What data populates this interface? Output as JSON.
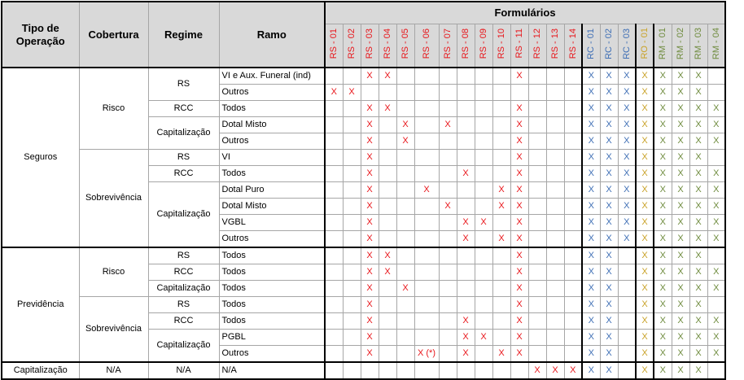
{
  "headers": {
    "tipo": "Tipo de Operação",
    "cobertura": "Cobertura",
    "regime": "Regime",
    "ramo": "Ramo",
    "formularios": "Formulários"
  },
  "forms": [
    {
      "code": "RS - 01",
      "group": "RS"
    },
    {
      "code": "RS - 02",
      "group": "RS"
    },
    {
      "code": "RS - 03",
      "group": "RS"
    },
    {
      "code": "RS - 04",
      "group": "RS"
    },
    {
      "code": "RS - 05",
      "group": "RS"
    },
    {
      "code": "RS - 06",
      "group": "RS"
    },
    {
      "code": "RS - 07",
      "group": "RS"
    },
    {
      "code": "RS - 08",
      "group": "RS"
    },
    {
      "code": "RS - 09",
      "group": "RS"
    },
    {
      "code": "RS - 10",
      "group": "RS"
    },
    {
      "code": "RS - 11",
      "group": "RS"
    },
    {
      "code": "RS - 12",
      "group": "RS"
    },
    {
      "code": "RS - 13",
      "group": "RS"
    },
    {
      "code": "RS - 14",
      "group": "RS"
    },
    {
      "code": "RC - 01",
      "group": "RC"
    },
    {
      "code": "RC - 02",
      "group": "RC"
    },
    {
      "code": "RC - 03",
      "group": "RC"
    },
    {
      "code": "RO - 01",
      "group": "RO"
    },
    {
      "code": "RM - 01",
      "group": "RM"
    },
    {
      "code": "RM - 02",
      "group": "RM"
    },
    {
      "code": "RM - 03",
      "group": "RM"
    },
    {
      "code": "RM - 04",
      "group": "RM"
    }
  ],
  "group_colors": {
    "RS": "#e8161b",
    "RC": "#3f6fb5",
    "RO": "#c9a227",
    "RM": "#6e8b3d"
  },
  "operations": [
    {
      "label": "Seguros",
      "coverages": [
        {
          "label": "Risco",
          "regimes": [
            {
              "label": "RS",
              "ramos": [
                {
                  "label": "VI e Aux. Funeral (ind)",
                  "marks": {
                    "RS - 03": "X",
                    "RS - 04": "X",
                    "RS - 11": "X",
                    "RC - 01": "X",
                    "RC - 02": "X",
                    "RC - 03": "X",
                    "RO - 01": "X",
                    "RM - 01": "X",
                    "RM - 02": "X",
                    "RM - 03": "X"
                  }
                },
                {
                  "label": "Outros",
                  "marks": {
                    "RS - 01": "X",
                    "RS - 02": "X",
                    "RC - 01": "X",
                    "RC - 02": "X",
                    "RC - 03": "X",
                    "RO - 01": "X",
                    "RM - 01": "X",
                    "RM - 02": "X",
                    "RM - 03": "X"
                  }
                }
              ]
            },
            {
              "label": "RCC",
              "ramos": [
                {
                  "label": "Todos",
                  "marks": {
                    "RS - 03": "X",
                    "RS - 04": "X",
                    "RS - 11": "X",
                    "RC - 01": "X",
                    "RC - 02": "X",
                    "RC - 03": "X",
                    "RO - 01": "X",
                    "RM - 01": "X",
                    "RM - 02": "X",
                    "RM - 03": "X",
                    "RM - 04": "X"
                  }
                }
              ]
            },
            {
              "label": "Capitalização",
              "ramos": [
                {
                  "label": "Dotal Misto",
                  "marks": {
                    "RS - 03": "X",
                    "RS - 05": "X",
                    "RS - 07": "X",
                    "RS - 11": "X",
                    "RC - 01": "X",
                    "RC - 02": "X",
                    "RC - 03": "X",
                    "RO - 01": "X",
                    "RM - 01": "X",
                    "RM - 02": "X",
                    "RM - 03": "X",
                    "RM - 04": "X"
                  }
                },
                {
                  "label": "Outros",
                  "marks": {
                    "RS - 03": "X",
                    "RS - 05": "X",
                    "RS - 11": "X",
                    "RC - 01": "X",
                    "RC - 02": "X",
                    "RC - 03": "X",
                    "RO - 01": "X",
                    "RM - 01": "X",
                    "RM - 02": "X",
                    "RM - 03": "X",
                    "RM - 04": "X"
                  }
                }
              ]
            }
          ]
        },
        {
          "label": "Sobrevivência",
          "regimes": [
            {
              "label": "RS",
              "ramos": [
                {
                  "label": "VI",
                  "marks": {
                    "RS - 03": "X",
                    "RS - 11": "X",
                    "RC - 01": "X",
                    "RC - 02": "X",
                    "RC - 03": "X",
                    "RO - 01": "X",
                    "RM - 01": "X",
                    "RM - 02": "X",
                    "RM - 03": "X"
                  }
                }
              ]
            },
            {
              "label": "RCC",
              "ramos": [
                {
                  "label": "Todos",
                  "marks": {
                    "RS - 03": "X",
                    "RS - 08": "X",
                    "RS - 11": "X",
                    "RC - 01": "X",
                    "RC - 02": "X",
                    "RC - 03": "X",
                    "RO - 01": "X",
                    "RM - 01": "X",
                    "RM - 02": "X",
                    "RM - 03": "X",
                    "RM - 04": "X"
                  }
                }
              ]
            },
            {
              "label": "Capitalização",
              "ramos": [
                {
                  "label": "Dotal Puro",
                  "marks": {
                    "RS - 03": "X",
                    "RS - 06": "X",
                    "RS - 10": "X",
                    "RS - 11": "X",
                    "RC - 01": "X",
                    "RC - 02": "X",
                    "RC - 03": "X",
                    "RO - 01": "X",
                    "RM - 01": "X",
                    "RM - 02": "X",
                    "RM - 03": "X",
                    "RM - 04": "X"
                  }
                },
                {
                  "label": "Dotal Misto",
                  "marks": {
                    "RS - 03": "X",
                    "RS - 07": "X",
                    "RS - 10": "X",
                    "RS - 11": "X",
                    "RC - 01": "X",
                    "RC - 02": "X",
                    "RC - 03": "X",
                    "RO - 01": "X",
                    "RM - 01": "X",
                    "RM - 02": "X",
                    "RM - 03": "X",
                    "RM - 04": "X"
                  }
                },
                {
                  "label": "VGBL",
                  "marks": {
                    "RS - 03": "X",
                    "RS - 08": "X",
                    "RS - 09": "X",
                    "RS - 11": "X",
                    "RC - 01": "X",
                    "RC - 02": "X",
                    "RC - 03": "X",
                    "RO - 01": "X",
                    "RM - 01": "X",
                    "RM - 02": "X",
                    "RM - 03": "X",
                    "RM - 04": "X"
                  }
                },
                {
                  "label": "Outros",
                  "marks": {
                    "RS - 03": "X",
                    "RS - 08": "X",
                    "RS - 10": "X",
                    "RS - 11": "X",
                    "RC - 01": "X",
                    "RC - 02": "X",
                    "RC - 03": "X",
                    "RO - 01": "X",
                    "RM - 01": "X",
                    "RM - 02": "X",
                    "RM - 03": "X",
                    "RM - 04": "X"
                  }
                }
              ]
            }
          ]
        }
      ]
    },
    {
      "label": "Previdência",
      "coverages": [
        {
          "label": "Risco",
          "regimes": [
            {
              "label": "RS",
              "ramos": [
                {
                  "label": "Todos",
                  "marks": {
                    "RS - 03": "X",
                    "RS - 04": "X",
                    "RS - 11": "X",
                    "RC - 01": "X",
                    "RC - 02": "X",
                    "RO - 01": "X",
                    "RM - 01": "X",
                    "RM - 02": "X",
                    "RM - 03": "X"
                  }
                }
              ]
            },
            {
              "label": "RCC",
              "ramos": [
                {
                  "label": "Todos",
                  "marks": {
                    "RS - 03": "X",
                    "RS - 04": "X",
                    "RS - 11": "X",
                    "RC - 01": "X",
                    "RC - 02": "X",
                    "RO - 01": "X",
                    "RM - 01": "X",
                    "RM - 02": "X",
                    "RM - 03": "X",
                    "RM - 04": "X"
                  }
                }
              ]
            },
            {
              "label": "Capitalização",
              "ramos": [
                {
                  "label": "Todos",
                  "marks": {
                    "RS - 03": "X",
                    "RS - 05": "X",
                    "RS - 11": "X",
                    "RC - 01": "X",
                    "RC - 02": "X",
                    "RO - 01": "X",
                    "RM - 01": "X",
                    "RM - 02": "X",
                    "RM - 03": "X",
                    "RM - 04": "X"
                  }
                }
              ]
            }
          ]
        },
        {
          "label": "Sobrevivência",
          "regimes": [
            {
              "label": "RS",
              "ramos": [
                {
                  "label": "Todos",
                  "marks": {
                    "RS - 03": "X",
                    "RS - 11": "X",
                    "RC - 01": "X",
                    "RC - 02": "X",
                    "RO - 01": "X",
                    "RM - 01": "X",
                    "RM - 02": "X",
                    "RM - 03": "X"
                  }
                }
              ]
            },
            {
              "label": "RCC",
              "ramos": [
                {
                  "label": "Todos",
                  "marks": {
                    "RS - 03": "X",
                    "RS - 08": "X",
                    "RS - 11": "X",
                    "RC - 01": "X",
                    "RC - 02": "X",
                    "RO - 01": "X",
                    "RM - 01": "X",
                    "RM - 02": "X",
                    "RM - 03": "X",
                    "RM - 04": "X"
                  }
                }
              ]
            },
            {
              "label": "Capitalização",
              "ramos": [
                {
                  "label": "PGBL",
                  "marks": {
                    "RS - 03": "X",
                    "RS - 08": "X",
                    "RS - 09": "X",
                    "RS - 11": "X",
                    "RC - 01": "X",
                    "RC - 02": "X",
                    "RO - 01": "X",
                    "RM - 01": "X",
                    "RM - 02": "X",
                    "RM - 03": "X",
                    "RM - 04": "X"
                  }
                },
                {
                  "label": "Outros",
                  "marks": {
                    "RS - 03": "X",
                    "RS - 06": "X (*)",
                    "RS - 08": "X",
                    "RS - 10": "X",
                    "RS - 11": "X",
                    "RC - 01": "X",
                    "RC - 02": "X",
                    "RO - 01": "X",
                    "RM - 01": "X",
                    "RM - 02": "X",
                    "RM - 03": "X",
                    "RM - 04": "X"
                  }
                }
              ]
            }
          ]
        }
      ]
    },
    {
      "label": "Capitalização",
      "coverages": [
        {
          "label": "N/A",
          "regimes": [
            {
              "label": "N/A",
              "ramos": [
                {
                  "label": "N/A",
                  "marks": {
                    "RS - 12": "X",
                    "RS - 13": "X",
                    "RS - 14": "X",
                    "RC - 01": "X",
                    "RC - 02": "X",
                    "RO - 01": "X",
                    "RM - 01": "X",
                    "RM - 02": "X",
                    "RM - 03": "X"
                  }
                }
              ]
            }
          ]
        }
      ]
    }
  ]
}
